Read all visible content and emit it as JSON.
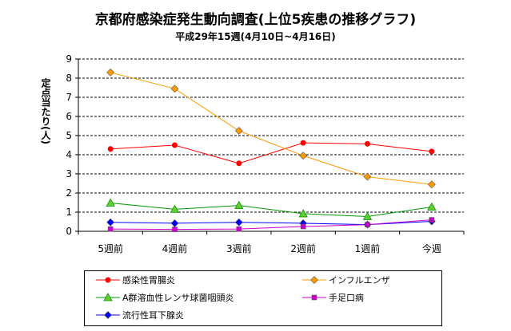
{
  "chart_data": {
    "type": "line",
    "title": "京都府感染症発生動向調査(上位5疾患の推移グラフ)",
    "subtitle": "平成29年15週(4月10日~4月16日)",
    "ylabel": "定点当たり(人)",
    "xlabel": "",
    "categories": [
      "5週前",
      "4週前",
      "3週前",
      "2週前",
      "1週前",
      "今週"
    ],
    "ylim": [
      0,
      9
    ],
    "yticks": [
      "0",
      "1",
      "2",
      "3",
      "4",
      "5",
      "6",
      "7",
      "8",
      "9"
    ],
    "grid": "horizontal dashed",
    "legend_position": "bottom",
    "series": [
      {
        "name": "感染性胃腸炎",
        "color": "#ff0000",
        "marker": "circle",
        "values": [
          4.3,
          4.5,
          3.55,
          4.62,
          4.57,
          4.17
        ]
      },
      {
        "name": "インフルエンザ",
        "color": "#ff9900",
        "marker": "diamond",
        "values": [
          8.3,
          7.45,
          5.25,
          3.95,
          2.85,
          2.45
        ]
      },
      {
        "name": "A群溶血性レンサ球菌咽頭炎",
        "color": "#009900",
        "marker": "triangle",
        "values": [
          1.48,
          1.15,
          1.35,
          0.92,
          0.77,
          1.27
        ]
      },
      {
        "name": "手足口病",
        "color": "#cc00cc",
        "marker": "square",
        "values": [
          0.12,
          0.1,
          0.12,
          0.25,
          0.35,
          0.6
        ]
      },
      {
        "name": "流行性耳下腺炎",
        "color": "#0000ff",
        "marker": "diamond",
        "values": [
          0.47,
          0.42,
          0.47,
          0.42,
          0.35,
          0.52
        ]
      }
    ]
  }
}
